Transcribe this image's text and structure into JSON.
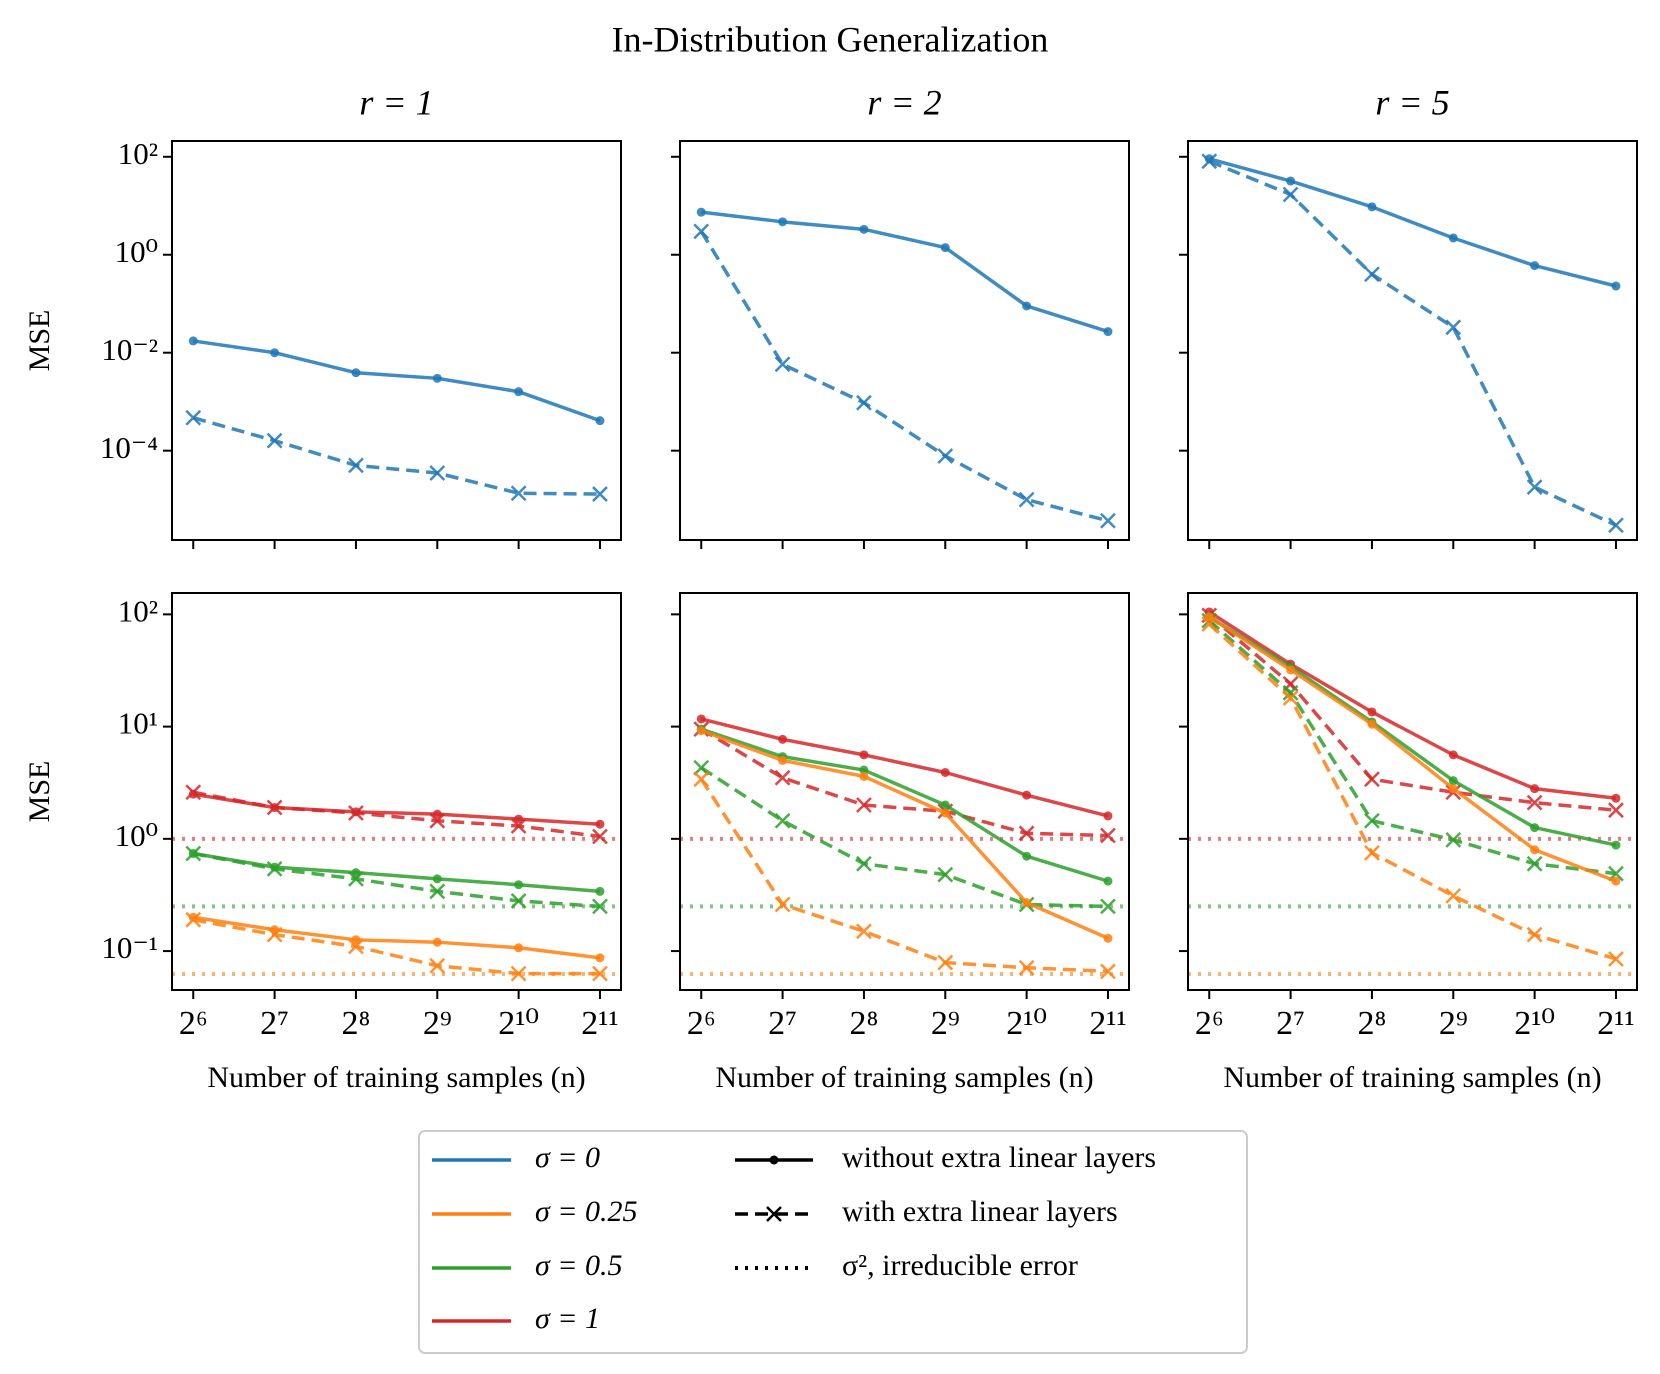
{
  "title": "In-Distribution Generalization",
  "chart_data": [
    {
      "type": "line",
      "title": "r = 1",
      "ylabel": "MSE",
      "xscale": "log",
      "yscale": "log",
      "x": [
        64,
        128,
        256,
        512,
        1024,
        2048
      ],
      "xlim": [
        53.4,
        2450
      ],
      "xticks": [
        64,
        128,
        256,
        512,
        1024,
        2048
      ],
      "ylim": [
        1.5e-06,
        210
      ],
      "yticks": [
        {
          "value": 100,
          "label": "10²"
        },
        {
          "value": 1,
          "label": "10⁰"
        },
        {
          "value": 0.01,
          "label": "10⁻²"
        },
        {
          "value": 0.0001,
          "label": "10⁻⁴"
        }
      ],
      "series": [
        {
          "color": "#1f77b4",
          "style": "solid",
          "marker": "dot",
          "values": [
            0.0174,
            0.01,
            0.0039,
            0.003,
            0.0016,
            0.00041
          ]
        },
        {
          "color": "#1f77b4",
          "style": "dashed",
          "marker": "x",
          "values": [
            0.00047,
            0.00016,
            5e-05,
            3.5e-05,
            1.35e-05,
            1.3e-05
          ]
        }
      ]
    },
    {
      "type": "line",
      "title": "r = 2",
      "xscale": "log",
      "yscale": "log",
      "x": [
        64,
        128,
        256,
        512,
        1024,
        2048
      ],
      "xlim": [
        53.4,
        2450
      ],
      "xticks": [
        64,
        128,
        256,
        512,
        1024,
        2048
      ],
      "ylim": [
        1.5e-06,
        210
      ],
      "yticks": [
        100,
        1,
        0.01,
        0.0001
      ],
      "series": [
        {
          "color": "#1f77b4",
          "style": "solid",
          "marker": "dot",
          "values": [
            7.4,
            4.7,
            3.3,
            1.4,
            0.09,
            0.027
          ]
        },
        {
          "color": "#1f77b4",
          "style": "dashed",
          "marker": "x",
          "values": [
            3.0,
            0.0058,
            0.00095,
            7.8e-05,
            1e-05,
            3.7e-06
          ]
        }
      ]
    },
    {
      "type": "line",
      "title": "r = 5",
      "xscale": "log",
      "yscale": "log",
      "x": [
        64,
        128,
        256,
        512,
        1024,
        2048
      ],
      "xlim": [
        53.4,
        2450
      ],
      "xticks": [
        64,
        128,
        256,
        512,
        1024,
        2048
      ],
      "ylim": [
        1.5e-06,
        210
      ],
      "yticks": [
        100,
        1,
        0.01,
        0.0001
      ],
      "series": [
        {
          "color": "#1f77b4",
          "style": "solid",
          "marker": "dot",
          "values": [
            91,
            32,
            9.5,
            2.2,
            0.6,
            0.23
          ]
        },
        {
          "color": "#1f77b4",
          "style": "dashed",
          "marker": "x",
          "values": [
            81,
            17,
            0.4,
            0.033,
            1.8e-05,
            3e-06
          ]
        }
      ]
    },
    {
      "type": "line",
      "ylabel": "MSE",
      "xlabel": "Number of training samples (n)",
      "xscale": "log",
      "yscale": "log",
      "x": [
        64,
        128,
        256,
        512,
        1024,
        2048
      ],
      "xlim": [
        53.4,
        2450
      ],
      "xticks": [
        {
          "value": 64,
          "label": "2⁶"
        },
        {
          "value": 128,
          "label": "2⁷"
        },
        {
          "value": 256,
          "label": "2⁸"
        },
        {
          "value": 512,
          "label": "2⁹"
        },
        {
          "value": 1024,
          "label": "2¹⁰"
        },
        {
          "value": 2048,
          "label": "2¹¹"
        }
      ],
      "ylim": [
        0.045,
        155
      ],
      "yticks": [
        {
          "value": 100,
          "label": "10²"
        },
        {
          "value": 10,
          "label": "10¹"
        },
        {
          "value": 1,
          "label": "10⁰"
        },
        {
          "value": 0.1,
          "label": "10⁻¹"
        }
      ],
      "hlines": [
        {
          "value": 1,
          "color": "#d62728"
        },
        {
          "value": 0.25,
          "color": "#2ca02c"
        },
        {
          "value": 0.0625,
          "color": "#ff7f0e"
        }
      ],
      "series": [
        {
          "color": "#d62728",
          "style": "solid",
          "marker": "dot",
          "values": [
            2.5,
            1.9,
            1.74,
            1.66,
            1.5,
            1.35
          ]
        },
        {
          "color": "#d62728",
          "style": "dashed",
          "marker": "x",
          "values": [
            2.6,
            1.9,
            1.7,
            1.45,
            1.3,
            1.05
          ]
        },
        {
          "color": "#2ca02c",
          "style": "solid",
          "marker": "dot",
          "values": [
            0.74,
            0.56,
            0.5,
            0.44,
            0.39,
            0.34
          ]
        },
        {
          "color": "#2ca02c",
          "style": "dashed",
          "marker": "x",
          "values": [
            0.74,
            0.54,
            0.44,
            0.34,
            0.28,
            0.25
          ]
        },
        {
          "color": "#ff7f0e",
          "style": "solid",
          "marker": "dot",
          "values": [
            0.2,
            0.155,
            0.126,
            0.12,
            0.107,
            0.087
          ]
        },
        {
          "color": "#ff7f0e",
          "style": "dashed",
          "marker": "x",
          "values": [
            0.19,
            0.14,
            0.11,
            0.074,
            0.063,
            0.063
          ]
        }
      ]
    },
    {
      "type": "line",
      "xlabel": "Number of training samples (n)",
      "xscale": "log",
      "yscale": "log",
      "x": [
        64,
        128,
        256,
        512,
        1024,
        2048
      ],
      "xlim": [
        53.4,
        2450
      ],
      "xticks": [
        {
          "value": 64,
          "label": "2⁶"
        },
        {
          "value": 128,
          "label": "2⁷"
        },
        {
          "value": 256,
          "label": "2⁸"
        },
        {
          "value": 512,
          "label": "2⁹"
        },
        {
          "value": 1024,
          "label": "2¹⁰"
        },
        {
          "value": 2048,
          "label": "2¹¹"
        }
      ],
      "ylim": [
        0.045,
        155
      ],
      "yticks": [
        100,
        10,
        1,
        0.1
      ],
      "hlines": [
        {
          "value": 1,
          "color": "#d62728"
        },
        {
          "value": 0.25,
          "color": "#2ca02c"
        },
        {
          "value": 0.0625,
          "color": "#ff7f0e"
        }
      ],
      "series": [
        {
          "color": "#d62728",
          "style": "solid",
          "marker": "dot",
          "values": [
            11.7,
            7.7,
            5.6,
            3.9,
            2.45,
            1.6
          ]
        },
        {
          "color": "#d62728",
          "style": "dashed",
          "marker": "x",
          "values": [
            9.5,
            3.5,
            2.0,
            1.76,
            1.12,
            1.07
          ]
        },
        {
          "color": "#2ca02c",
          "style": "solid",
          "marker": "dot",
          "values": [
            9.5,
            5.4,
            4.1,
            2.0,
            0.7,
            0.42
          ]
        },
        {
          "color": "#2ca02c",
          "style": "dashed",
          "marker": "x",
          "values": [
            4.3,
            1.45,
            0.6,
            0.48,
            0.26,
            0.25
          ]
        },
        {
          "color": "#ff7f0e",
          "style": "solid",
          "marker": "dot",
          "values": [
            9.2,
            5.0,
            3.6,
            1.7,
            0.27,
            0.13
          ]
        },
        {
          "color": "#ff7f0e",
          "style": "dashed",
          "marker": "x",
          "values": [
            3.4,
            0.26,
            0.15,
            0.079,
            0.071,
            0.066
          ]
        }
      ]
    },
    {
      "type": "line",
      "xlabel": "Number of training samples (n)",
      "xscale": "log",
      "yscale": "log",
      "x": [
        64,
        128,
        256,
        512,
        1024,
        2048
      ],
      "xlim": [
        53.4,
        2450
      ],
      "xticks": [
        {
          "value": 64,
          "label": "2⁶"
        },
        {
          "value": 128,
          "label": "2⁷"
        },
        {
          "value": 256,
          "label": "2⁸"
        },
        {
          "value": 512,
          "label": "2⁹"
        },
        {
          "value": 1024,
          "label": "2¹⁰"
        },
        {
          "value": 2048,
          "label": "2¹¹"
        }
      ],
      "ylim": [
        0.045,
        155
      ],
      "yticks": [
        100,
        10,
        1,
        0.1
      ],
      "hlines": [
        {
          "value": 1,
          "color": "#d62728"
        },
        {
          "value": 0.25,
          "color": "#2ca02c"
        },
        {
          "value": 0.0625,
          "color": "#ff7f0e"
        }
      ],
      "series": [
        {
          "color": "#d62728",
          "style": "solid",
          "marker": "dot",
          "values": [
            105,
            36,
            13.5,
            5.6,
            2.8,
            2.3
          ]
        },
        {
          "color": "#d62728",
          "style": "dashed",
          "marker": "x",
          "values": [
            98,
            24,
            3.4,
            2.6,
            2.1,
            1.8
          ]
        },
        {
          "color": "#2ca02c",
          "style": "solid",
          "marker": "dot",
          "values": [
            95,
            34,
            11,
            3.3,
            1.26,
            0.88
          ]
        },
        {
          "color": "#2ca02c",
          "style": "dashed",
          "marker": "x",
          "values": [
            88,
            20,
            1.45,
            0.98,
            0.6,
            0.49
          ]
        },
        {
          "color": "#ff7f0e",
          "style": "solid",
          "marker": "dot",
          "values": [
            95,
            32,
            10.5,
            2.8,
            0.8,
            0.42
          ]
        },
        {
          "color": "#ff7f0e",
          "style": "dashed",
          "marker": "x",
          "values": [
            82,
            18,
            0.75,
            0.31,
            0.14,
            0.085
          ]
        }
      ]
    }
  ],
  "legend": {
    "colors": [
      {
        "label": "σ = 0",
        "color": "#1f77b4"
      },
      {
        "label": "σ = 0.25",
        "color": "#ff7f0e"
      },
      {
        "label": "σ = 0.5",
        "color": "#2ca02c"
      },
      {
        "label": "σ = 1",
        "color": "#d62728"
      }
    ],
    "styles": [
      {
        "label": "without extra linear layers",
        "style": "solid",
        "marker": "dot"
      },
      {
        "label": "with extra linear layers",
        "style": "dashed",
        "marker": "x"
      },
      {
        "label": "σ², irreducible error",
        "style": "dotted"
      }
    ]
  }
}
